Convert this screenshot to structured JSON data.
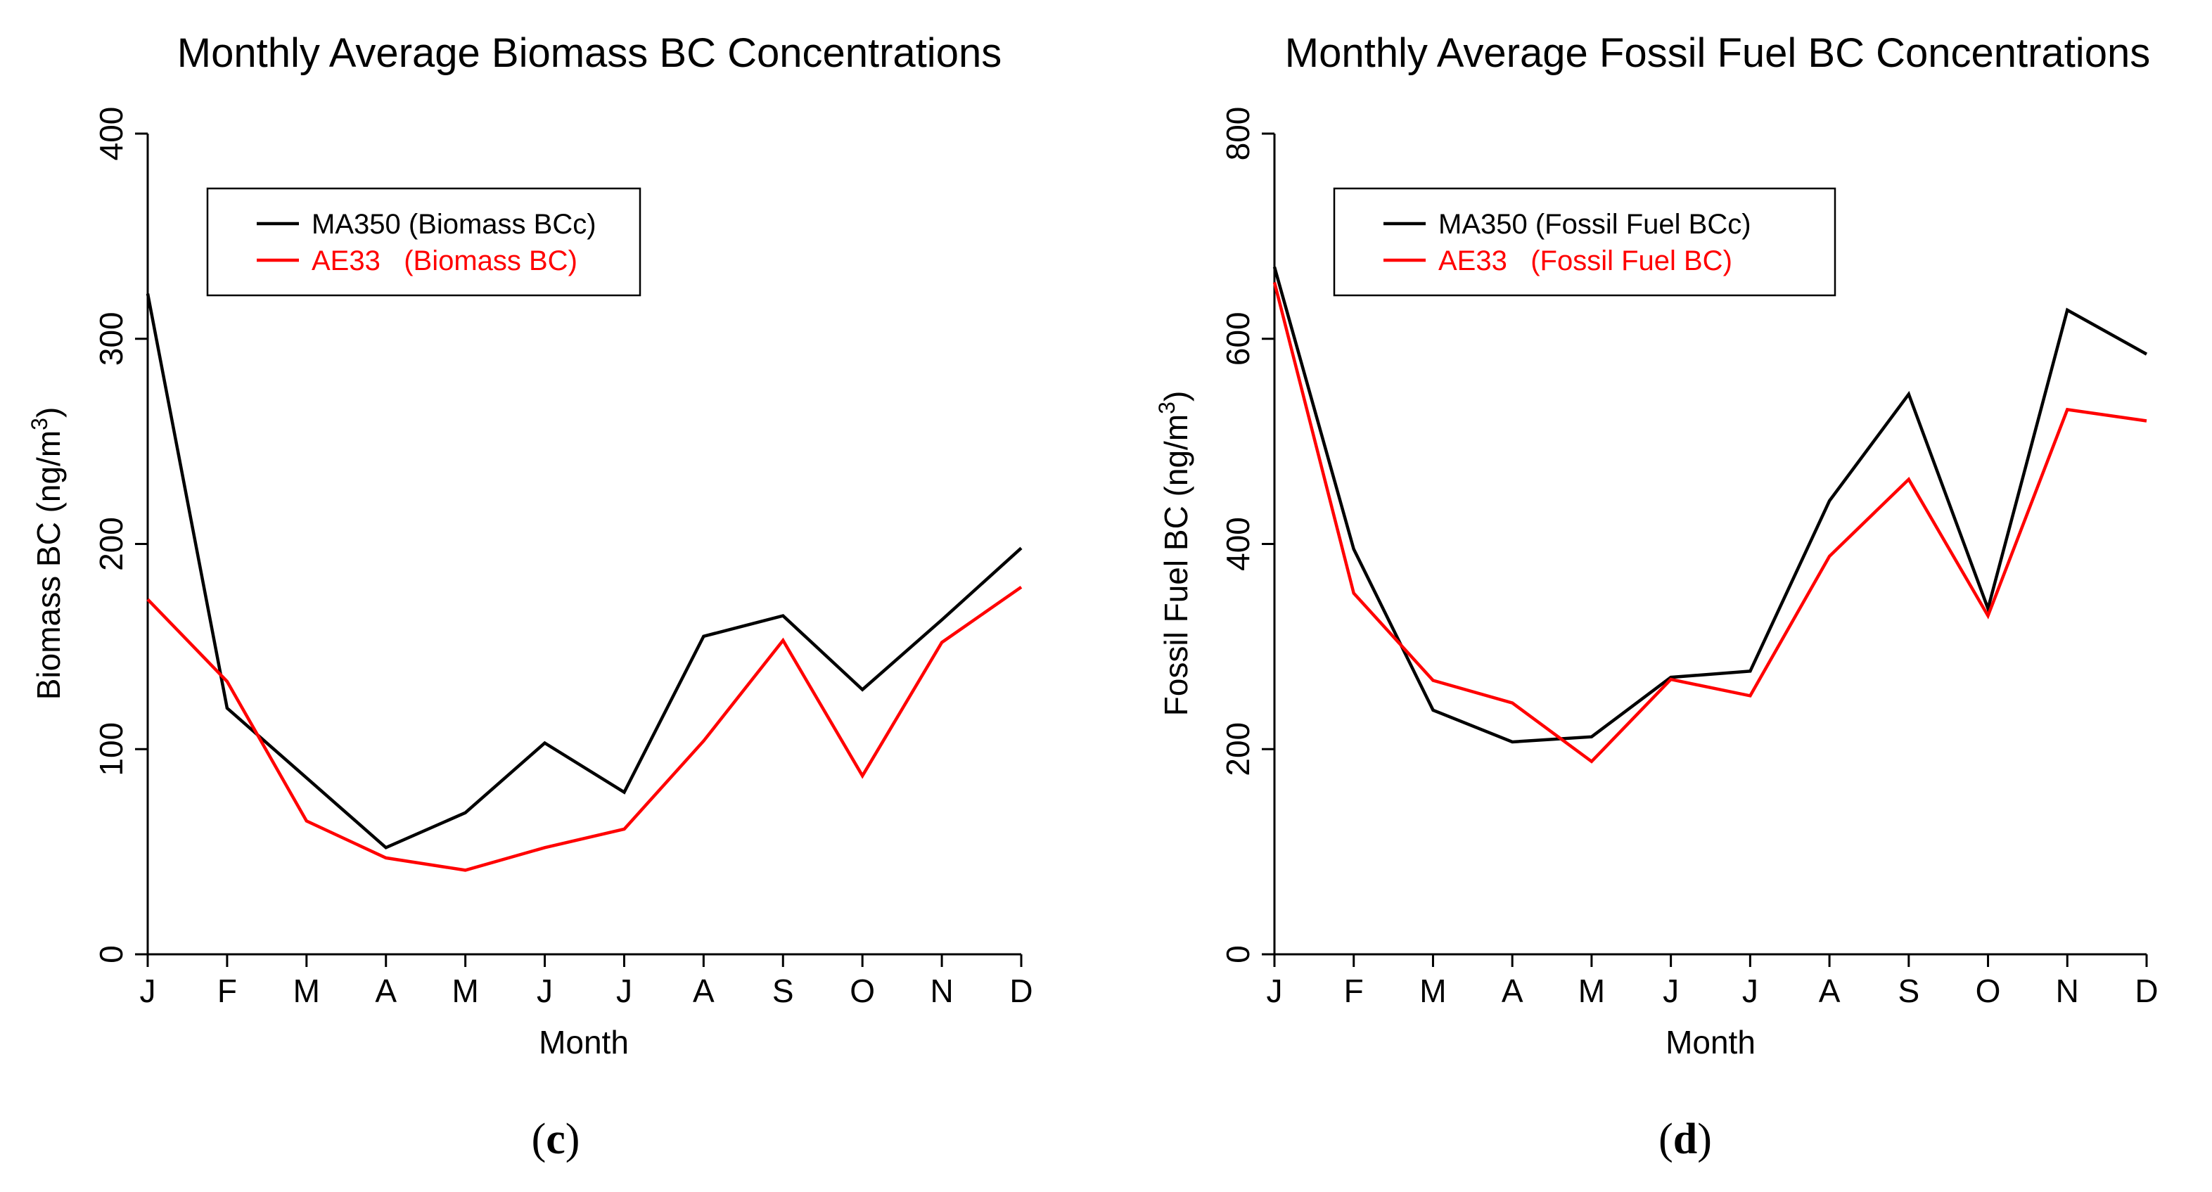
{
  "colors": {
    "series_ma350": "#000000",
    "series_ae33": "#ff0000",
    "axis": "#000000"
  },
  "captions": {
    "left": {
      "open": "(",
      "letter": "c",
      "close": ")"
    },
    "right": {
      "open": "(",
      "letter": "d",
      "close": ")"
    }
  },
  "chart_data": [
    {
      "type": "line",
      "title": "Monthly Average Biomass BC Concentrations",
      "xlabel": "Month",
      "ylabel": "Biomass BC (ng/m",
      "ylabel_superscript": "3",
      "ylabel_suffix": ")",
      "categories": [
        "J",
        "F",
        "M",
        "A",
        "M",
        "J",
        "J",
        "A",
        "S",
        "O",
        "N",
        "D"
      ],
      "ylim": [
        0,
        400
      ],
      "yticks": [
        0,
        100,
        200,
        300,
        400
      ],
      "legend_position": "top-left",
      "series": [
        {
          "name": "MA350 (Biomass BCc)",
          "color": "#000000",
          "values": [
            322,
            120,
            86,
            52,
            69,
            103,
            79,
            155,
            165,
            129,
            163,
            198
          ]
        },
        {
          "name": "AE33   (Biomass BC)",
          "color": "#ff0000",
          "values": [
            173,
            133,
            65,
            47,
            41,
            52,
            61,
            104,
            153,
            87,
            152,
            179
          ]
        }
      ]
    },
    {
      "type": "line",
      "title": "Monthly Average Fossil Fuel BC Concentrations",
      "xlabel": "Month",
      "ylabel": "Fossil Fuel BC (ng/m",
      "ylabel_superscript": "3",
      "ylabel_suffix": ")",
      "categories": [
        "J",
        "F",
        "M",
        "A",
        "M",
        "J",
        "J",
        "A",
        "S",
        "O",
        "N",
        "D"
      ],
      "ylim": [
        0,
        800
      ],
      "yticks": [
        0,
        200,
        400,
        600,
        800
      ],
      "legend_position": "top-left",
      "series": [
        {
          "name": "MA350 (Fossil Fuel BCc)",
          "color": "#000000",
          "values": [
            670,
            395,
            238,
            207,
            212,
            270,
            276,
            442,
            546,
            337,
            628,
            585
          ]
        },
        {
          "name": "AE33   (Fossil Fuel BC)",
          "color": "#ff0000",
          "values": [
            655,
            352,
            267,
            245,
            188,
            268,
            252,
            388,
            463,
            330,
            531,
            520
          ]
        }
      ]
    }
  ]
}
